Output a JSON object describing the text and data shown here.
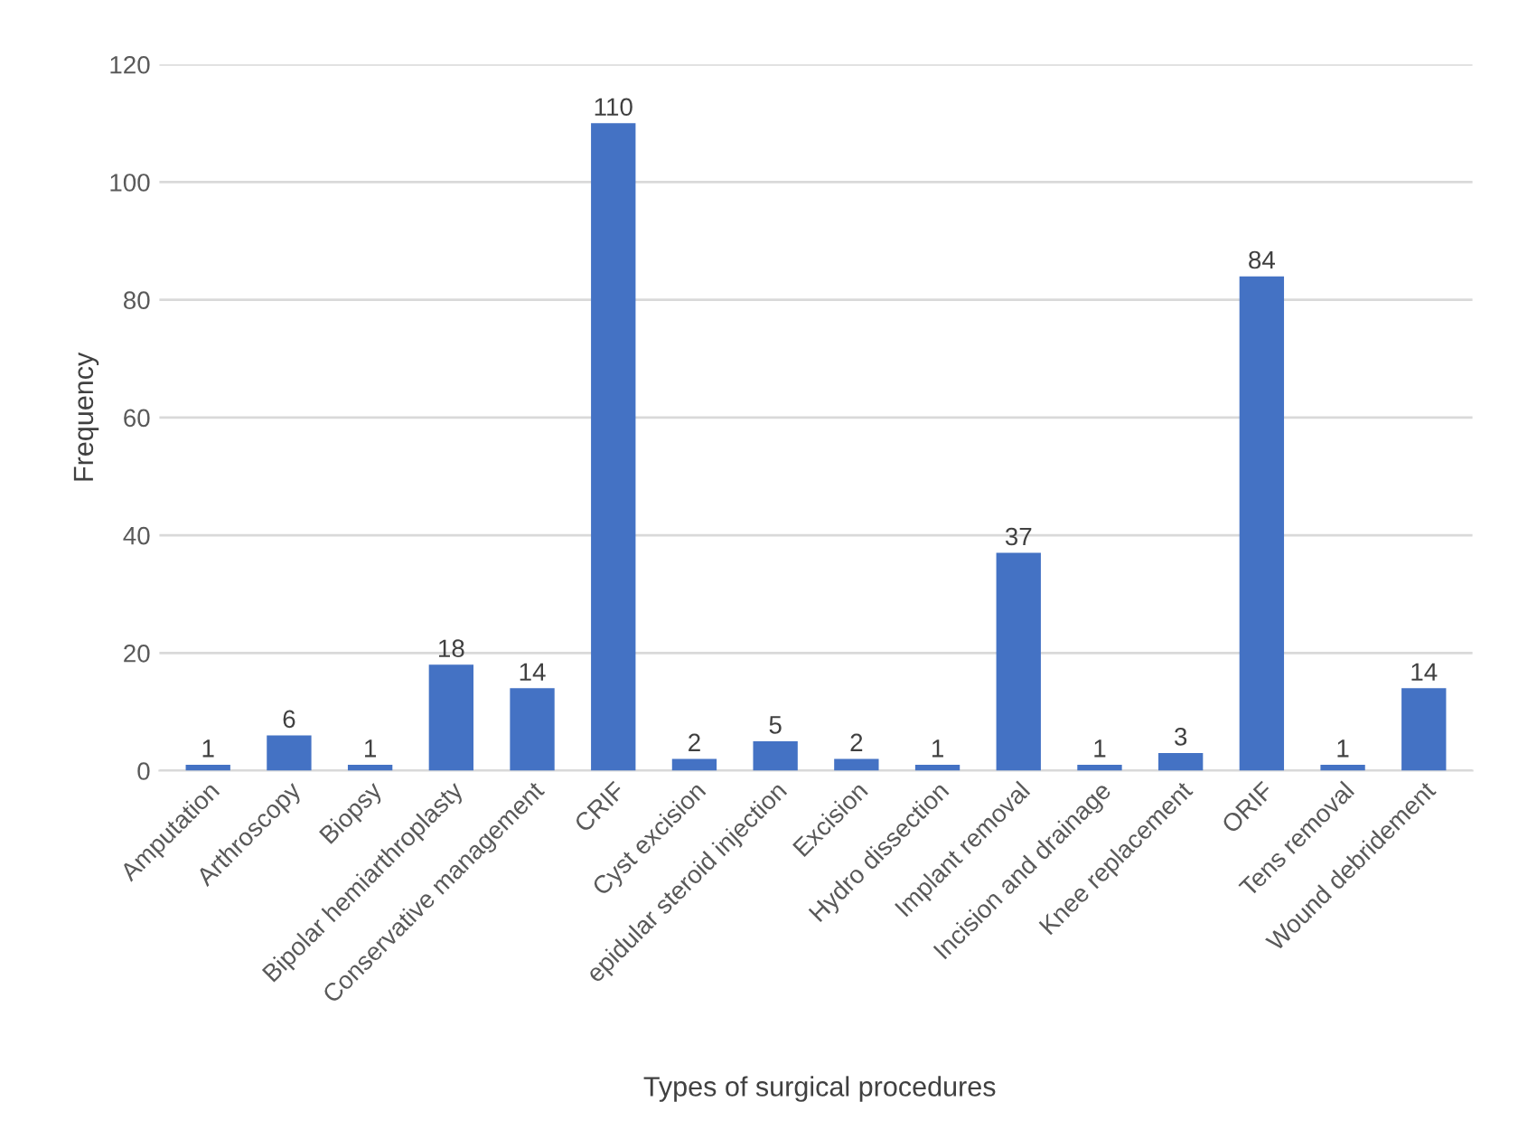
{
  "chart_data": {
    "type": "bar",
    "xlabel": "Types of surgical procedures",
    "ylabel": "Frequency",
    "categories": [
      "Amputation",
      "Arthroscopy",
      "Biopsy",
      "Bipolar hemiarthroplasty",
      "Conservative management",
      "CRIF",
      "Cyst excision",
      "epidular steroid injection",
      "Excision",
      "Hydro dissection",
      "Implant removal",
      "Incision and drainage",
      "Knee replacement",
      "ORIF",
      "Tens removal",
      "Wound debridement"
    ],
    "values": [
      1,
      6,
      1,
      18,
      14,
      110,
      2,
      5,
      2,
      1,
      37,
      1,
      3,
      84,
      1,
      14
    ],
    "color": "#4472c4",
    "ylim": [
      0,
      120
    ],
    "yticks": [
      0,
      20,
      40,
      60,
      80,
      100,
      120
    ],
    "grid": "y",
    "data_labels": true
  }
}
